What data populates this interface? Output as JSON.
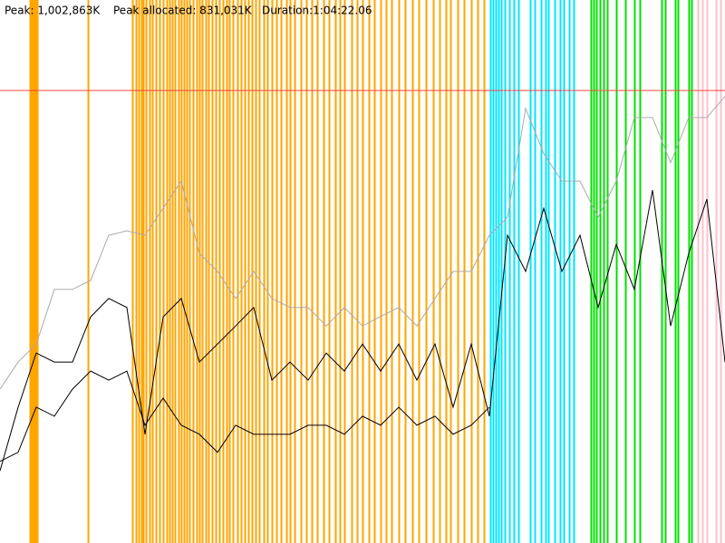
{
  "header": {
    "peak": "Peak: 1,002,863K",
    "peak_allocated": "Peak allocated: 831,031K",
    "duration": "Duration:1:04:22.06"
  },
  "chart_data": {
    "type": "line",
    "xlim": [
      0,
      800
    ],
    "ylim": [
      0,
      1203436
    ],
    "peak_line": {
      "value": 1002863,
      "color": "#ff4040"
    },
    "x": [
      0,
      20,
      40,
      60,
      80,
      100,
      120,
      140,
      160,
      180,
      200,
      220,
      240,
      260,
      280,
      300,
      320,
      340,
      360,
      380,
      400,
      420,
      440,
      460,
      480,
      500,
      520,
      540,
      560,
      580,
      600,
      620,
      640,
      660,
      680,
      700,
      720,
      740,
      760,
      780,
      800
    ],
    "events": [
      {
        "color": "#ffa500",
        "x": [
          33,
          35,
          37,
          39,
          41,
          97,
          146,
          150,
          153,
          156,
          158,
          161,
          165,
          168,
          172,
          176,
          180,
          184,
          187,
          190,
          193,
          197,
          200,
          203,
          206,
          209,
          213,
          217,
          220,
          223,
          227,
          230,
          234,
          238,
          242,
          246,
          250,
          253,
          257,
          262,
          266,
          270,
          274,
          278,
          282,
          286,
          291,
          295,
          300,
          305,
          310,
          316,
          320,
          325,
          332,
          338,
          344,
          350,
          357,
          363,
          370,
          375,
          380,
          388,
          394,
          400,
          407,
          413,
          420,
          426,
          432,
          440,
          447,
          455,
          462,
          470,
          478,
          485,
          492,
          497,
          505,
          512,
          520,
          527,
          534
        ]
      },
      {
        "color": "#00e5ff",
        "x": [
          541,
          544,
          547,
          550,
          553,
          557,
          562,
          567,
          572,
          585,
          590,
          597,
          602,
          605,
          612,
          618,
          622,
          628,
          633
        ]
      },
      {
        "color": "#00e000",
        "x": [
          652,
          655,
          658,
          662,
          666,
          670,
          680,
          690,
          700,
          706,
          730,
          734,
          745,
          748,
          760,
          763
        ]
      },
      {
        "color": "#ffc0cb",
        "x": [
          770,
          775,
          780,
          790,
          795
        ]
      }
    ],
    "series": [
      {
        "color": "#aaaaaa",
        "values": [
          341000,
          401000,
          441000,
          562000,
          562000,
          582000,
          682000,
          692000,
          682000,
          742000,
          802000,
          642000,
          602000,
          542000,
          602000,
          542000,
          522000,
          522000,
          481000,
          522000,
          481000,
          502000,
          522000,
          481000,
          542000,
          602000,
          602000,
          682000,
          722000,
          963000,
          863000,
          802000,
          802000,
          722000,
          802000,
          943000,
          943000,
          843000,
          943000,
          943000,
          990000
        ]
      },
      {
        "color": "#000000",
        "values": [
          160000,
          301000,
          421000,
          401000,
          401000,
          501000,
          542000,
          522000,
          241000,
          501000,
          542000,
          401000,
          441000,
          481000,
          522000,
          361000,
          401000,
          361000,
          421000,
          381000,
          441000,
          381000,
          441000,
          361000,
          441000,
          301000,
          441000,
          281000,
          682000,
          602000,
          742000,
          602000,
          682000,
          522000,
          662000,
          562000,
          782000,
          481000,
          642000,
          762000,
          401000
        ]
      },
      {
        "color": "#000000",
        "values": [
          181000,
          201000,
          301000,
          281000,
          341000,
          381000,
          361000,
          381000,
          261000,
          321000,
          261000,
          241000,
          201000,
          261000,
          241000,
          241000,
          241000,
          261000,
          261000,
          241000,
          281000,
          261000,
          301000,
          261000,
          281000,
          241000,
          261000,
          301000,
          null,
          null,
          null,
          null,
          null,
          null,
          null,
          null,
          null,
          null,
          null,
          null,
          null
        ]
      }
    ]
  }
}
